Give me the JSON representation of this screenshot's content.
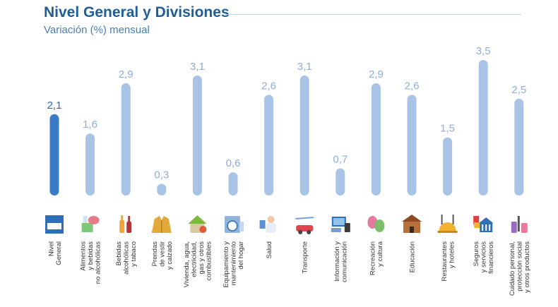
{
  "header": {
    "title": "Nivel General y Divisiones",
    "subtitle": "Variación (%) mensual"
  },
  "colors": {
    "highlight_bar": "#3a7bc8",
    "bar": "#a9c3e6",
    "highlight_label": "#2a6aaf",
    "value_label": "#8faed8",
    "rule": "#c7d6e6"
  },
  "chart_data": {
    "type": "bar",
    "title": "Nivel General y Divisiones",
    "subtitle": "Variación (%) mensual",
    "xlabel": "",
    "ylabel": "",
    "ylim": [
      0,
      3.5
    ],
    "grid": false,
    "legend": "none",
    "categories": [
      [
        "Nivel",
        "General"
      ],
      [
        "Alimentos",
        "y bebidas",
        "no alcohólicas"
      ],
      [
        "Bebidas",
        "alcohólicas",
        "y tabaco"
      ],
      [
        "Prendas",
        "de vestir",
        "y calzado"
      ],
      [
        "Vivienda, agua,",
        "electricidad,",
        "gas y otros",
        "combustibles"
      ],
      [
        "Equipamiento y",
        "mantenimiento",
        "del hogar"
      ],
      [
        "Salud"
      ],
      [
        "Transporte"
      ],
      [
        "Información y",
        "comunicación"
      ],
      [
        "Recreación",
        "y cultura"
      ],
      [
        "Educación"
      ],
      [
        "Restaurantes",
        "y hoteles"
      ],
      [
        "Seguros",
        "y servicios",
        "financieros"
      ],
      [
        "Cuidado personal,",
        "protección social",
        "y otros productos"
      ]
    ],
    "values": [
      2.1,
      1.6,
      2.9,
      0.3,
      3.1,
      0.6,
      2.6,
      3.1,
      0.7,
      2.9,
      2.6,
      1.5,
      3.5,
      2.5
    ],
    "value_labels": [
      "2,1",
      "1,6",
      "2,9",
      "0,3",
      "3,1",
      "0,6",
      "2,6",
      "3,1",
      "0,7",
      "2,9",
      "2,6",
      "1,5",
      "3,5",
      "2,5"
    ],
    "highlight_index": 0,
    "icons": [
      "ipc-ba-logo-icon",
      "food-icon",
      "bottles-icon",
      "jacket-icon",
      "house-icon",
      "washing-machine-icon",
      "doctor-icon",
      "transport-icon",
      "devices-icon",
      "theater-masks-icon",
      "school-icon",
      "restaurant-icon",
      "bank-icon",
      "personal-care-icon"
    ]
  }
}
